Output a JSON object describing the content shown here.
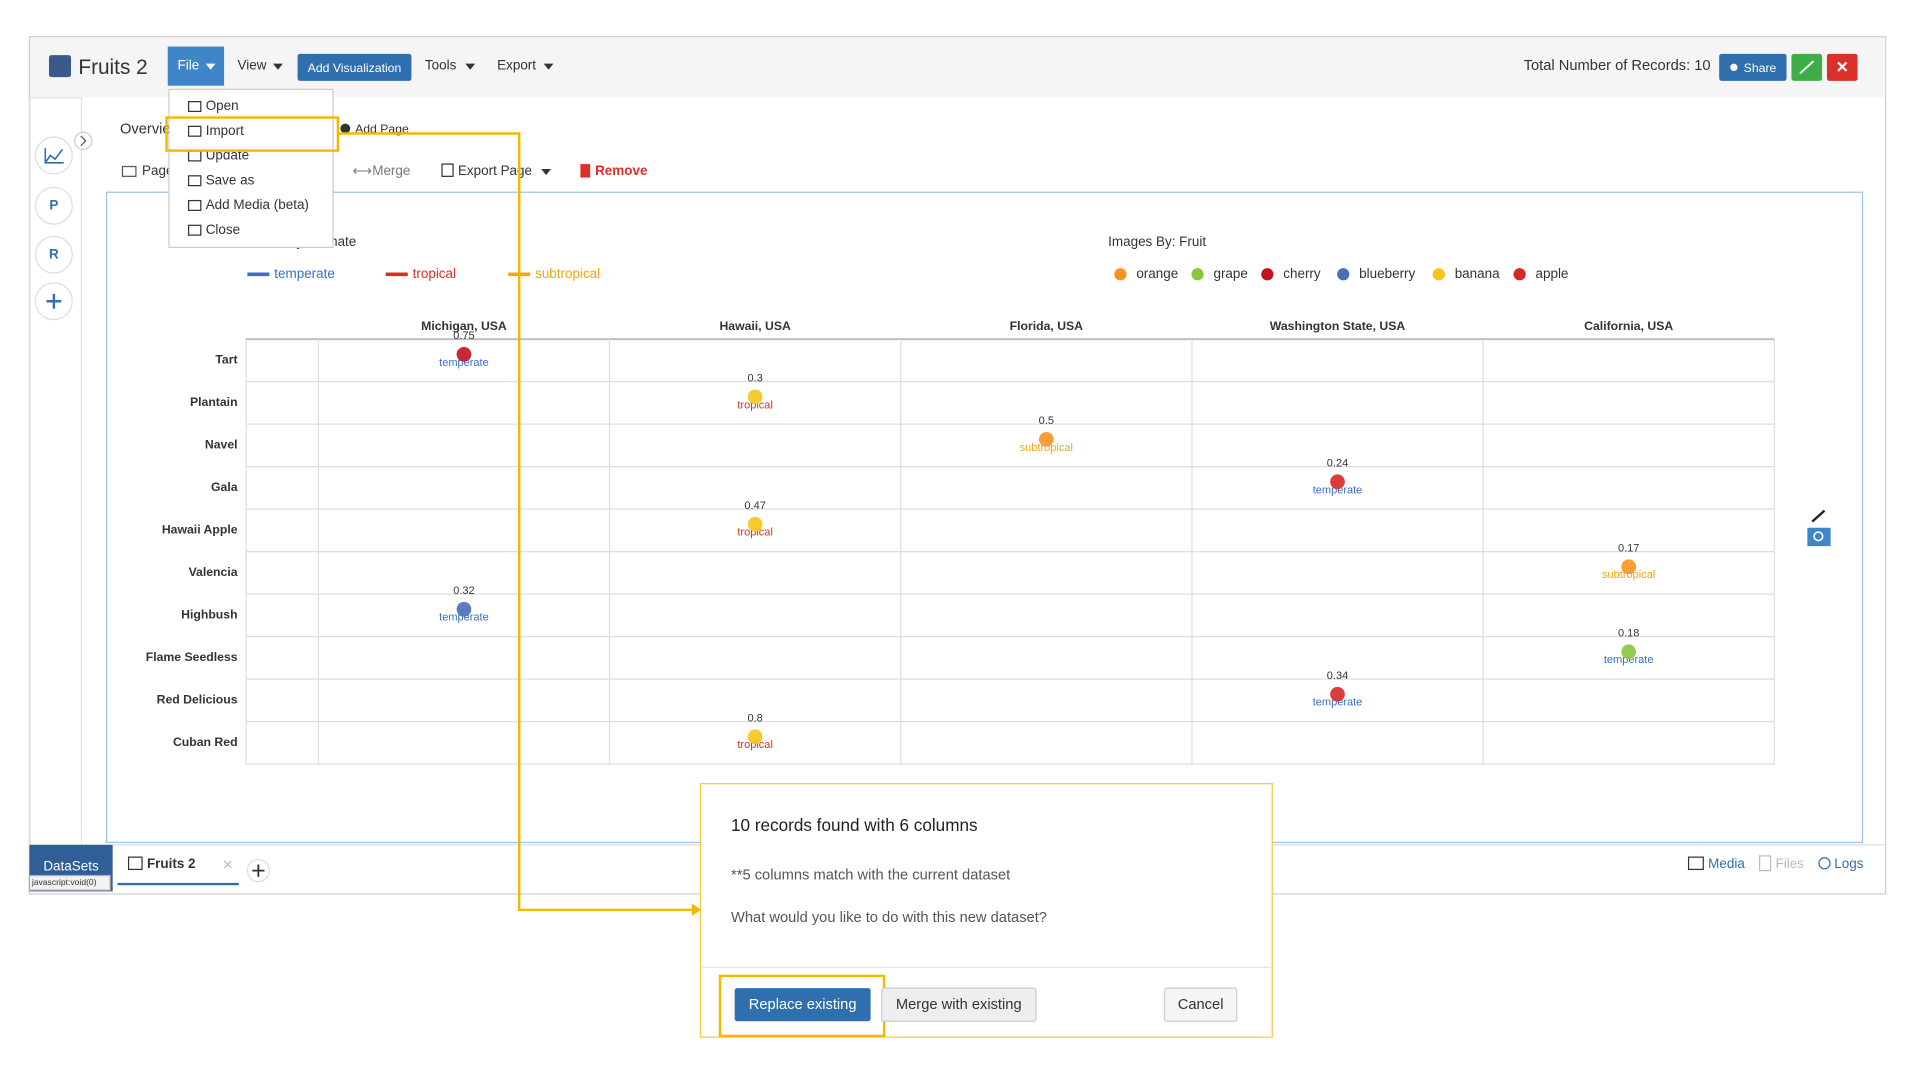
{
  "app": {
    "title": "Fruits 2",
    "menu": [
      "File",
      "View",
      "Add Visualization",
      "Tools",
      "Export"
    ],
    "records_label": "Total Number of Records: 10",
    "share": "Share"
  },
  "file_menu": [
    "Open",
    "Import",
    "Update",
    "Save as",
    "Add Media (beta)",
    "Close"
  ],
  "sidebar": [
    "P",
    "R"
  ],
  "page_tabs": {
    "overview": "Overview",
    "add_page": "Add Page"
  },
  "toolbar": [
    "Page",
    "Merge",
    "Export Page",
    "Remove"
  ],
  "chart_data": {
    "type": "dotplot",
    "color_legend_title": "Colors By: Climate",
    "climates": [
      {
        "name": "temperate",
        "color": "#3a6fc4"
      },
      {
        "name": "tropical",
        "color": "#d9301e"
      },
      {
        "name": "subtropical",
        "color": "#f2a516"
      }
    ],
    "image_legend_title": "Images By: Fruit",
    "fruits": [
      {
        "name": "orange",
        "color": "#f7931e"
      },
      {
        "name": "grape",
        "color": "#8cc63f"
      },
      {
        "name": "cherry",
        "color": "#c1121f"
      },
      {
        "name": "blueberry",
        "color": "#4a6fb5"
      },
      {
        "name": "banana",
        "color": "#f5c518"
      },
      {
        "name": "apple",
        "color": "#d62828"
      }
    ],
    "columns": [
      "Michigan, USA",
      "Hawaii, USA",
      "Florida, USA",
      "Washington State, USA",
      "California, USA"
    ],
    "rows": [
      "Tart",
      "Plantain",
      "Navel",
      "Gala",
      "Hawaii Apple",
      "Valencia",
      "Highbush",
      "Flame Seedless",
      "Red Delicious",
      "Cuban Red"
    ],
    "points": [
      {
        "row": "Tart",
        "column": "Michigan, USA",
        "value": 0.75,
        "fruit": "cherry",
        "climate": "temperate"
      },
      {
        "row": "Plantain",
        "column": "Hawaii, USA",
        "value": 0.3,
        "fruit": "banana",
        "climate": "tropical"
      },
      {
        "row": "Navel",
        "column": "Florida, USA",
        "value": 0.5,
        "fruit": "orange",
        "climate": "subtropical"
      },
      {
        "row": "Gala",
        "column": "Washington State, USA",
        "value": 0.24,
        "fruit": "apple",
        "climate": "temperate"
      },
      {
        "row": "Hawaii Apple",
        "column": "Hawaii, USA",
        "value": 0.47,
        "fruit": "banana",
        "climate": "tropical"
      },
      {
        "row": "Valencia",
        "column": "California, USA",
        "value": 0.17,
        "fruit": "orange",
        "climate": "subtropical"
      },
      {
        "row": "Highbush",
        "column": "Michigan, USA",
        "value": 0.32,
        "fruit": "blueberry",
        "climate": "temperate"
      },
      {
        "row": "Flame Seedless",
        "column": "California, USA",
        "value": 0.18,
        "fruit": "grape",
        "climate": "temperate"
      },
      {
        "row": "Red Delicious",
        "column": "Washington State, USA",
        "value": 0.34,
        "fruit": "apple",
        "climate": "temperate"
      },
      {
        "row": "Cuban Red",
        "column": "Hawaii, USA",
        "value": 0.8,
        "fruit": "banana",
        "climate": "tropical"
      }
    ]
  },
  "bottom": {
    "datasets": "DataSets",
    "status": "javascript:void(0)",
    "tab": "Fruits 2",
    "links": [
      "Media",
      "Files",
      "Logs"
    ]
  },
  "dialog": {
    "title": "10 records found with 6 columns",
    "note": "**5 columns match with the current dataset",
    "question": "What would you like to do with this new dataset?",
    "buttons": [
      "Replace existing",
      "Merge with existing",
      "Cancel"
    ]
  }
}
